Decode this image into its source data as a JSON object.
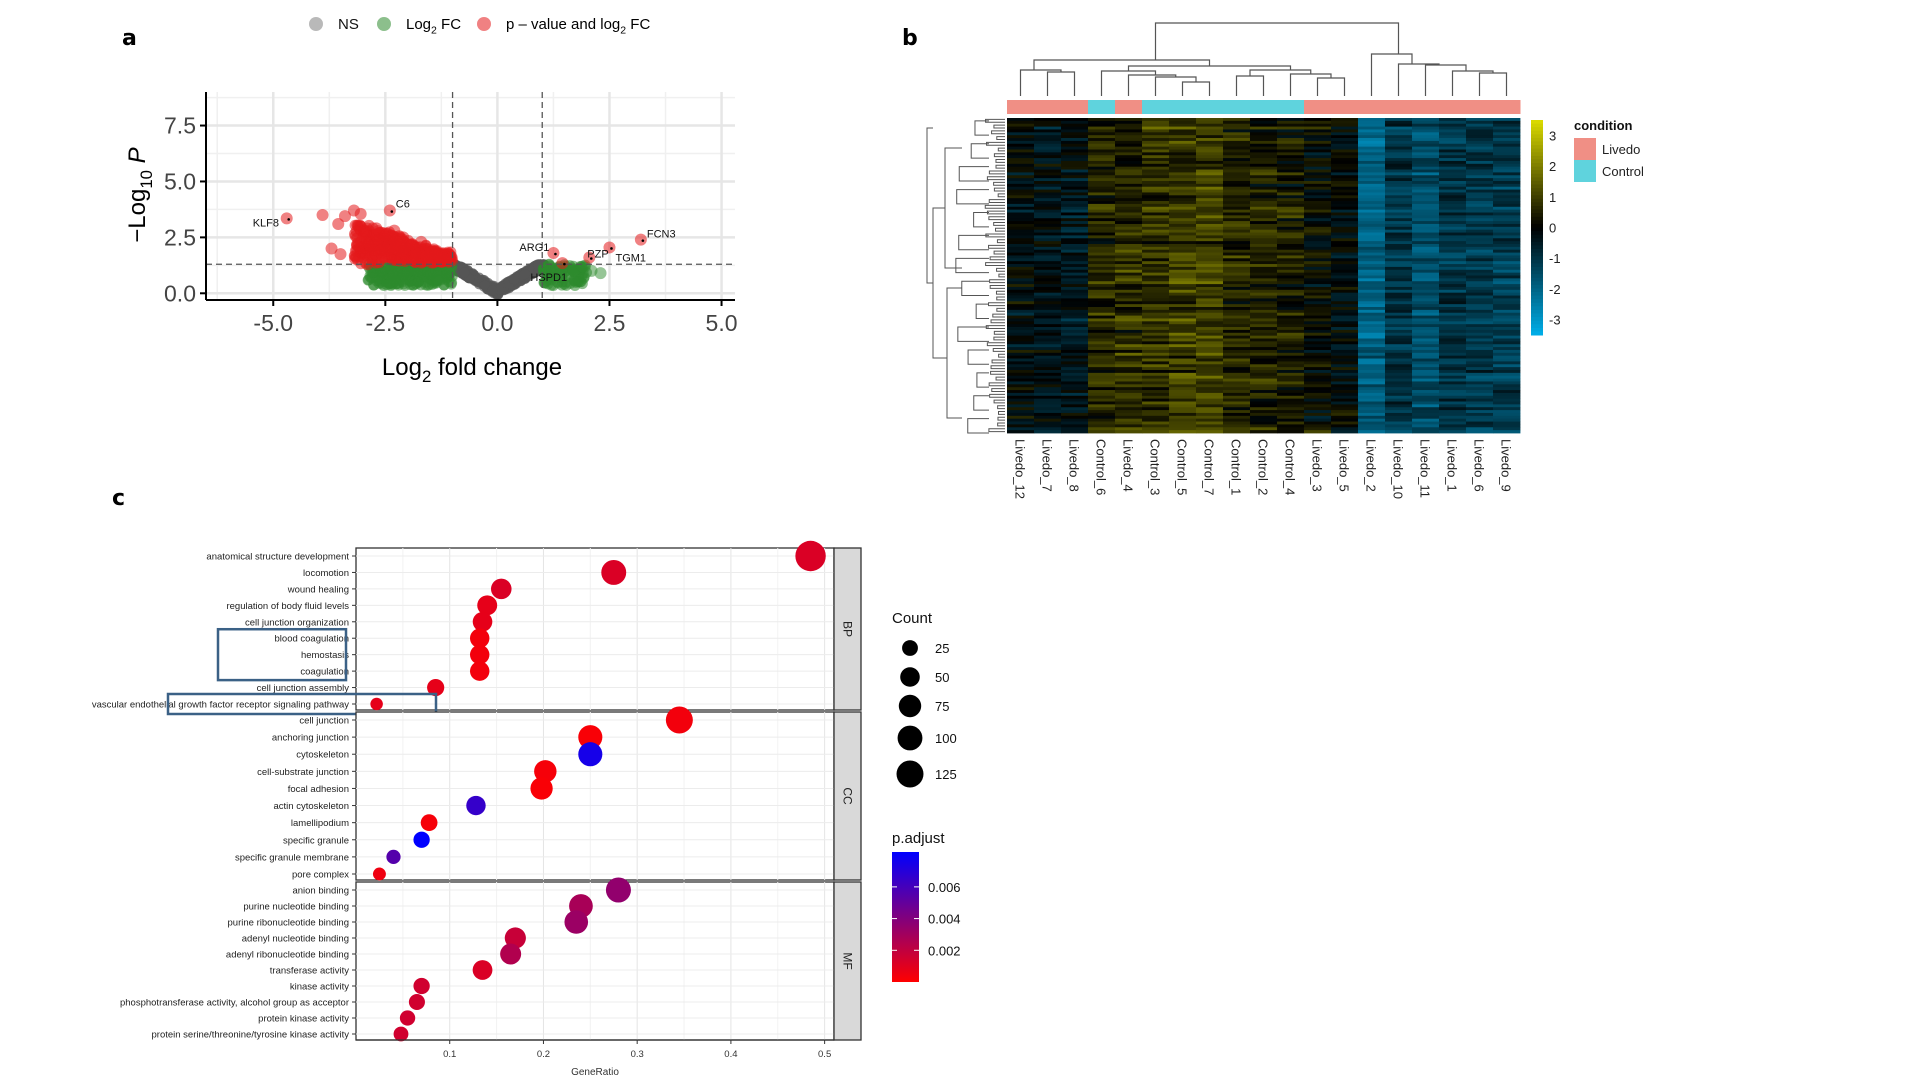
{
  "panels": {
    "a": "a",
    "b": "b",
    "c": "c"
  },
  "chart_data": [
    {
      "id": "volcano",
      "type": "scatter",
      "title": "",
      "xlabel": "Log2 fold change",
      "xlabel_main": "Log",
      "xlabel_sub": "2",
      "xlabel_rest": " fold change",
      "ylabel_main": "−Log",
      "ylabel_sub": "10",
      "ylabel_rest": " P",
      "xlim": [
        -6.5,
        5.3
      ],
      "ylim": [
        -0.3,
        9.0
      ],
      "x_ticks": [
        -5.0,
        -2.5,
        0.0,
        2.5,
        5.0
      ],
      "x_tick_labels": [
        "-5.0",
        "-2.5",
        "0.0",
        "2.5",
        "5.0"
      ],
      "y_ticks": [
        0.0,
        2.5,
        5.0,
        7.5
      ],
      "y_tick_labels": [
        "0.0",
        "2.5",
        "5.0",
        "7.5"
      ],
      "fc_cutoff": 1.0,
      "p_cutoff_neglog10": 1.3,
      "grid": true,
      "legend_position": "top",
      "legend": [
        {
          "name": "NS",
          "color": "#808080"
        },
        {
          "name_main": "Log",
          "name_sub": "2",
          "name_rest": " FC",
          "name": "Log2 FC",
          "color": "#2e8b2e"
        },
        {
          "name_main": "p – value and log",
          "name_sub": "2",
          "name_rest": " FC",
          "name": "p - value and log2 FC",
          "color": "#e41a1c"
        }
      ],
      "labeled_genes": [
        {
          "gene": "KLF8",
          "x": -4.7,
          "y": 3.35,
          "class": "sig"
        },
        {
          "gene": "C6",
          "x": -2.4,
          "y": 3.7,
          "class": "sig"
        },
        {
          "gene": "ARG1",
          "x": 1.25,
          "y": 1.8,
          "class": "sig"
        },
        {
          "gene": "HSPD1",
          "x": 1.45,
          "y": 1.35,
          "class": "sig"
        },
        {
          "gene": "PZP",
          "x": 2.05,
          "y": 1.6,
          "class": "sig"
        },
        {
          "gene": "TGM1",
          "x": 2.5,
          "y": 2.05,
          "class": "sig"
        },
        {
          "gene": "FCN3",
          "x": 3.2,
          "y": 2.4,
          "class": "sig"
        }
      ],
      "extra_points_sig": [
        [
          -3.9,
          3.5
        ],
        [
          -3.55,
          3.1
        ],
        [
          -3.4,
          3.45
        ],
        [
          -3.2,
          3.7
        ],
        [
          -3.05,
          3.55
        ],
        [
          -3.7,
          2.0
        ],
        [
          -3.5,
          1.75
        ],
        [
          -2.9,
          1.3
        ],
        [
          -2.7,
          2.9
        ],
        [
          -2.5,
          2.6
        ],
        [
          -2.3,
          2.8
        ],
        [
          -2.1,
          2.5
        ],
        [
          -1.9,
          2.2
        ],
        [
          -1.7,
          2.3
        ],
        [
          -1.5,
          1.8
        ],
        [
          -1.3,
          1.6
        ],
        [
          -1.1,
          1.5
        ]
      ],
      "extra_points_fc": [
        [
          1.7,
          1.0
        ],
        [
          2.1,
          1.0
        ],
        [
          1.9,
          1.2
        ],
        [
          2.3,
          0.9
        ]
      ]
    },
    {
      "id": "heatmap",
      "type": "heatmap",
      "columns": [
        "Livedo_12",
        "Livedo_7",
        "Livedo_8",
        "Control_6",
        "Livedo_4",
        "Control_3",
        "Control_5",
        "Control_7",
        "Control_1",
        "Control_2",
        "Control_4",
        "Livedo_3",
        "Livedo_5",
        "Livedo_2",
        "Livedo_10",
        "Livedo_11",
        "Livedo_1",
        "Livedo_6",
        "Livedo_9"
      ],
      "column_condition": [
        "Livedo",
        "Livedo",
        "Livedo",
        "Control",
        "Livedo",
        "Control",
        "Control",
        "Control",
        "Control",
        "Control",
        "Control",
        "Livedo",
        "Livedo",
        "Livedo",
        "Livedo",
        "Livedo",
        "Livedo",
        "Livedo",
        "Livedo"
      ],
      "column_mean_zscore": [
        -0.2,
        -0.3,
        -0.4,
        0.6,
        0.7,
        0.8,
        1.0,
        1.0,
        0.6,
        0.5,
        0.4,
        0.1,
        -0.1,
        -2.0,
        -1.0,
        -1.6,
        -1.1,
        -1.2,
        -1.2
      ],
      "color_scale": {
        "min": -3.5,
        "max": 3.5,
        "low": "#00bfff",
        "mid": "#000000",
        "high": "#ffff00"
      },
      "colorbar_ticks": [
        3,
        2,
        1,
        0,
        -1,
        -2,
        -3
      ],
      "colorbar_tick_labels": [
        "3",
        "2",
        "1",
        "0",
        "-1",
        "-2",
        "-3"
      ],
      "legend_title": "condition",
      "legend": [
        {
          "name": "Livedo",
          "color": "#f08f85"
        },
        {
          "name": "Control",
          "color": "#5fd3dd"
        }
      ],
      "row_dendrogram": true,
      "column_dendrogram": true
    },
    {
      "id": "go-dotplot",
      "type": "scatter",
      "xlabel": "GeneRatio",
      "xlim": [
        0.0,
        0.51
      ],
      "x_ticks": [
        0.1,
        0.2,
        0.3,
        0.4,
        0.5
      ],
      "x_tick_labels": [
        "0.1",
        "0.2",
        "0.3",
        "0.4",
        "0.5"
      ],
      "grid": true,
      "facets": [
        {
          "name": "BP",
          "terms": [
            {
              "term": "anatomical structure development",
              "gene_ratio": 0.485,
              "count": 130,
              "p_adjust": 0.0012
            },
            {
              "term": "locomotion",
              "gene_ratio": 0.275,
              "count": 75,
              "p_adjust": 0.0012
            },
            {
              "term": "wound healing",
              "gene_ratio": 0.155,
              "count": 42,
              "p_adjust": 0.0012
            },
            {
              "term": "regulation of body fluid levels",
              "gene_ratio": 0.14,
              "count": 38,
              "p_adjust": 0.0008
            },
            {
              "term": "cell junction organization",
              "gene_ratio": 0.135,
              "count": 36,
              "p_adjust": 0.0008
            },
            {
              "term": "blood coagulation",
              "gene_ratio": 0.132,
              "count": 35,
              "p_adjust": 0.0004
            },
            {
              "term": "hemostasis",
              "gene_ratio": 0.132,
              "count": 35,
              "p_adjust": 0.0004
            },
            {
              "term": "coagulation",
              "gene_ratio": 0.132,
              "count": 35,
              "p_adjust": 0.0004
            },
            {
              "term": "cell junction assembly",
              "gene_ratio": 0.085,
              "count": 23,
              "p_adjust": 0.0008
            },
            {
              "term": "vascular endothelial growth factor receptor signaling pathway",
              "gene_ratio": 0.022,
              "count": 6,
              "p_adjust": 0.0008
            }
          ],
          "highlighted": [
            "blood coagulation",
            "hemostasis",
            "coagulation",
            "vascular endothelial growth factor receptor signaling pathway"
          ]
        },
        {
          "name": "CC",
          "terms": [
            {
              "term": "cell junction",
              "gene_ratio": 0.345,
              "count": 94,
              "p_adjust": 0.0004
            },
            {
              "term": "anchoring junction",
              "gene_ratio": 0.25,
              "count": 68,
              "p_adjust": 0.0002
            },
            {
              "term": "cytoskeleton",
              "gene_ratio": 0.25,
              "count": 68,
              "p_adjust": 0.0075
            },
            {
              "term": "cell-substrate junction",
              "gene_ratio": 0.202,
              "count": 55,
              "p_adjust": 0.0003
            },
            {
              "term": "focal adhesion",
              "gene_ratio": 0.198,
              "count": 54,
              "p_adjust": 0.0002
            },
            {
              "term": "actin cytoskeleton",
              "gene_ratio": 0.128,
              "count": 35,
              "p_adjust": 0.0065
            },
            {
              "term": "lamellipodium",
              "gene_ratio": 0.078,
              "count": 21,
              "p_adjust": 0.0003
            },
            {
              "term": "specific granule",
              "gene_ratio": 0.07,
              "count": 19,
              "p_adjust": 0.0085
            },
            {
              "term": "specific granule membrane",
              "gene_ratio": 0.04,
              "count": 11,
              "p_adjust": 0.0055
            },
            {
              "term": "pore complex",
              "gene_ratio": 0.025,
              "count": 7,
              "p_adjust": 0.0005
            }
          ]
        },
        {
          "name": "MF",
          "terms": [
            {
              "term": "anion binding",
              "gene_ratio": 0.28,
              "count": 76,
              "p_adjust": 0.0035
            },
            {
              "term": "purine nucleotide binding",
              "gene_ratio": 0.24,
              "count": 65,
              "p_adjust": 0.0028
            },
            {
              "term": "purine ribonucleotide binding",
              "gene_ratio": 0.235,
              "count": 64,
              "p_adjust": 0.0032
            },
            {
              "term": "adenyl nucleotide binding",
              "gene_ratio": 0.17,
              "count": 46,
              "p_adjust": 0.0018
            },
            {
              "term": "adenyl ribonucleotide binding",
              "gene_ratio": 0.165,
              "count": 45,
              "p_adjust": 0.0025
            },
            {
              "term": "transferase activity",
              "gene_ratio": 0.135,
              "count": 37,
              "p_adjust": 0.0012
            },
            {
              "term": "kinase activity",
              "gene_ratio": 0.07,
              "count": 19,
              "p_adjust": 0.0015
            },
            {
              "term": "phosphotransferase activity, alcohol group as acceptor",
              "gene_ratio": 0.065,
              "count": 18,
              "p_adjust": 0.0015
            },
            {
              "term": "protein kinase activity",
              "gene_ratio": 0.055,
              "count": 15,
              "p_adjust": 0.0015
            },
            {
              "term": "protein serine/threonine/tyrosine kinase activity",
              "gene_ratio": 0.048,
              "count": 13,
              "p_adjust": 0.0015
            }
          ]
        }
      ],
      "size_legend": {
        "title": "Count",
        "values": [
          25,
          50,
          75,
          100,
          125
        ],
        "labels": [
          "25",
          "50",
          "75",
          "100",
          "125"
        ]
      },
      "color_legend": {
        "title": "p.adjust",
        "min": 0.0,
        "max": 0.0082,
        "low": "#ff0000",
        "high": "#0000ff",
        "ticks": [
          0.006,
          0.004,
          0.002
        ],
        "tick_labels": [
          "0.006",
          "0.004",
          "0.002"
        ]
      }
    }
  ]
}
